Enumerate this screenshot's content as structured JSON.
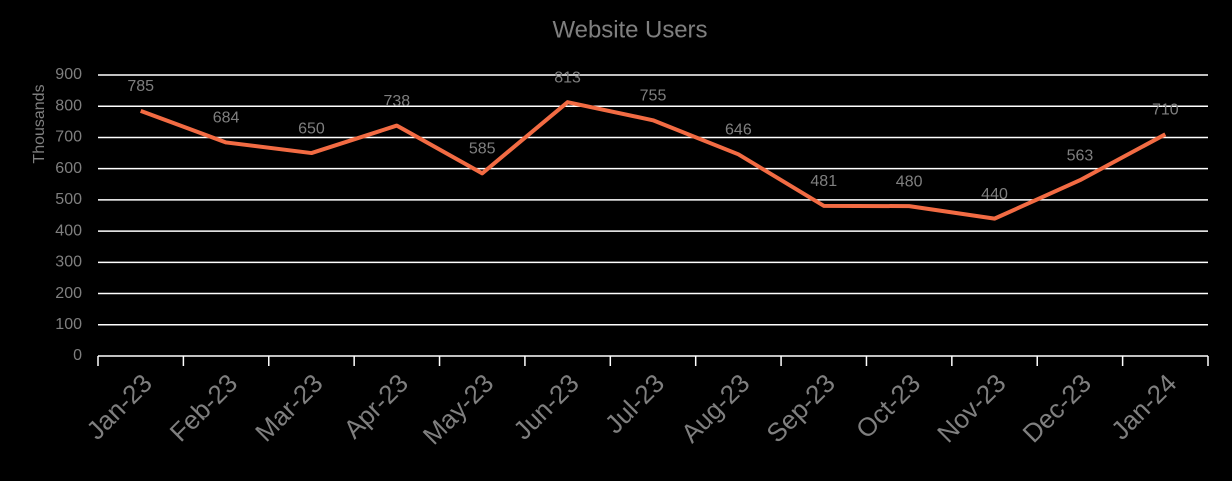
{
  "chart_data": {
    "type": "line",
    "title": "Website Users",
    "y_label": "Thousands",
    "categories": [
      "Jan-23",
      "Feb-23",
      "Mar-23",
      "Apr-23",
      "May-23",
      "Jun-23",
      "Jul-23",
      "Aug-23",
      "Sep-23",
      "Oct-23",
      "Nov-23",
      "Dec-23",
      "Jan-24"
    ],
    "values": [
      785,
      684,
      650,
      738,
      585,
      813,
      755,
      646,
      481,
      480,
      440,
      563,
      710
    ],
    "color": "#f26b43",
    "ylim": [
      0,
      900
    ],
    "yticks": [
      0,
      100,
      200,
      300,
      400,
      500,
      600,
      700,
      800,
      900
    ],
    "grid": true
  }
}
